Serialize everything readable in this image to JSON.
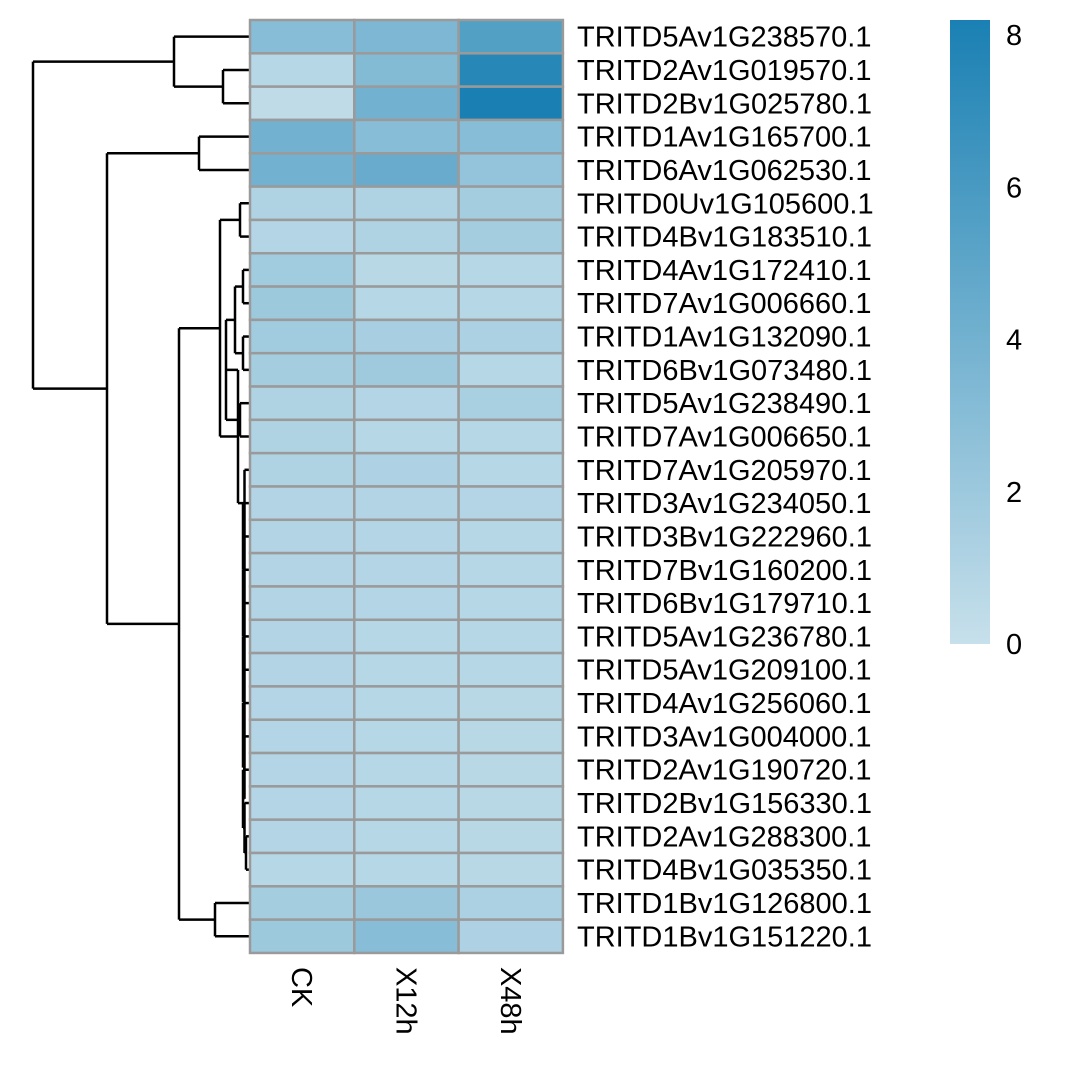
{
  "chart_data": {
    "type": "heatmap",
    "columns": [
      "CK",
      "X12h",
      "X48h"
    ],
    "rows": [
      "TRITD5Av1G238570.1",
      "TRITD2Av1G019570.1",
      "TRITD2Bv1G025780.1",
      "TRITD1Av1G165700.1",
      "TRITD6Av1G062530.1",
      "TRITD0Uv1G105600.1",
      "TRITD4Bv1G183510.1",
      "TRITD4Av1G172410.1",
      "TRITD7Av1G006660.1",
      "TRITD1Av1G132090.1",
      "TRITD6Bv1G073480.1",
      "TRITD5Av1G238490.1",
      "TRITD7Av1G006650.1",
      "TRITD7Av1G205970.1",
      "TRITD3Av1G234050.1",
      "TRITD3Bv1G222960.1",
      "TRITD7Bv1G160200.1",
      "TRITD6Bv1G179710.1",
      "TRITD5Av1G236780.1",
      "TRITD5Av1G209100.1",
      "TRITD4Av1G256060.1",
      "TRITD3Av1G004000.1",
      "TRITD2Av1G190720.1",
      "TRITD2Bv1G156330.1",
      "TRITD2Av1G288300.1",
      "TRITD4Bv1G035350.1",
      "TRITD1Bv1G126800.1",
      "TRITD1Bv1G151220.1"
    ],
    "values": [
      [
        3.0,
        3.5,
        5.5
      ],
      [
        0.8,
        3.2,
        7.6
      ],
      [
        0.4,
        4.0,
        8.2
      ],
      [
        4.0,
        3.0,
        3.0
      ],
      [
        4.0,
        4.5,
        2.4
      ],
      [
        1.1,
        1.1,
        1.6
      ],
      [
        0.9,
        1.1,
        1.6
      ],
      [
        1.8,
        0.7,
        0.8
      ],
      [
        2.0,
        0.8,
        0.8
      ],
      [
        1.8,
        1.5,
        1.3
      ],
      [
        1.6,
        1.9,
        0.8
      ],
      [
        1.1,
        0.9,
        1.4
      ],
      [
        1.1,
        0.8,
        0.8
      ],
      [
        1.1,
        1.2,
        0.8
      ],
      [
        1.0,
        1.0,
        0.9
      ],
      [
        1.0,
        0.9,
        0.8
      ],
      [
        1.0,
        0.9,
        0.8
      ],
      [
        1.0,
        0.9,
        0.8
      ],
      [
        1.0,
        0.8,
        0.8
      ],
      [
        1.0,
        0.8,
        0.8
      ],
      [
        0.9,
        0.8,
        0.7
      ],
      [
        0.9,
        0.8,
        0.7
      ],
      [
        0.9,
        0.8,
        0.7
      ],
      [
        0.9,
        0.8,
        0.7
      ],
      [
        0.9,
        0.8,
        0.7
      ],
      [
        0.8,
        0.8,
        0.7
      ],
      [
        1.6,
        2.1,
        1.3
      ],
      [
        2.0,
        3.0,
        1.2
      ]
    ],
    "color_scale": {
      "min": 0,
      "max": 8.2,
      "low_color": "#c7e0eb",
      "high_color": "#1a80b3"
    },
    "legend": {
      "ticks": [
        "0",
        "2",
        "4",
        "6",
        "8"
      ],
      "placement": "top-right"
    },
    "row_dendrogram": true,
    "cell_border_color": "#9a9a9a"
  }
}
